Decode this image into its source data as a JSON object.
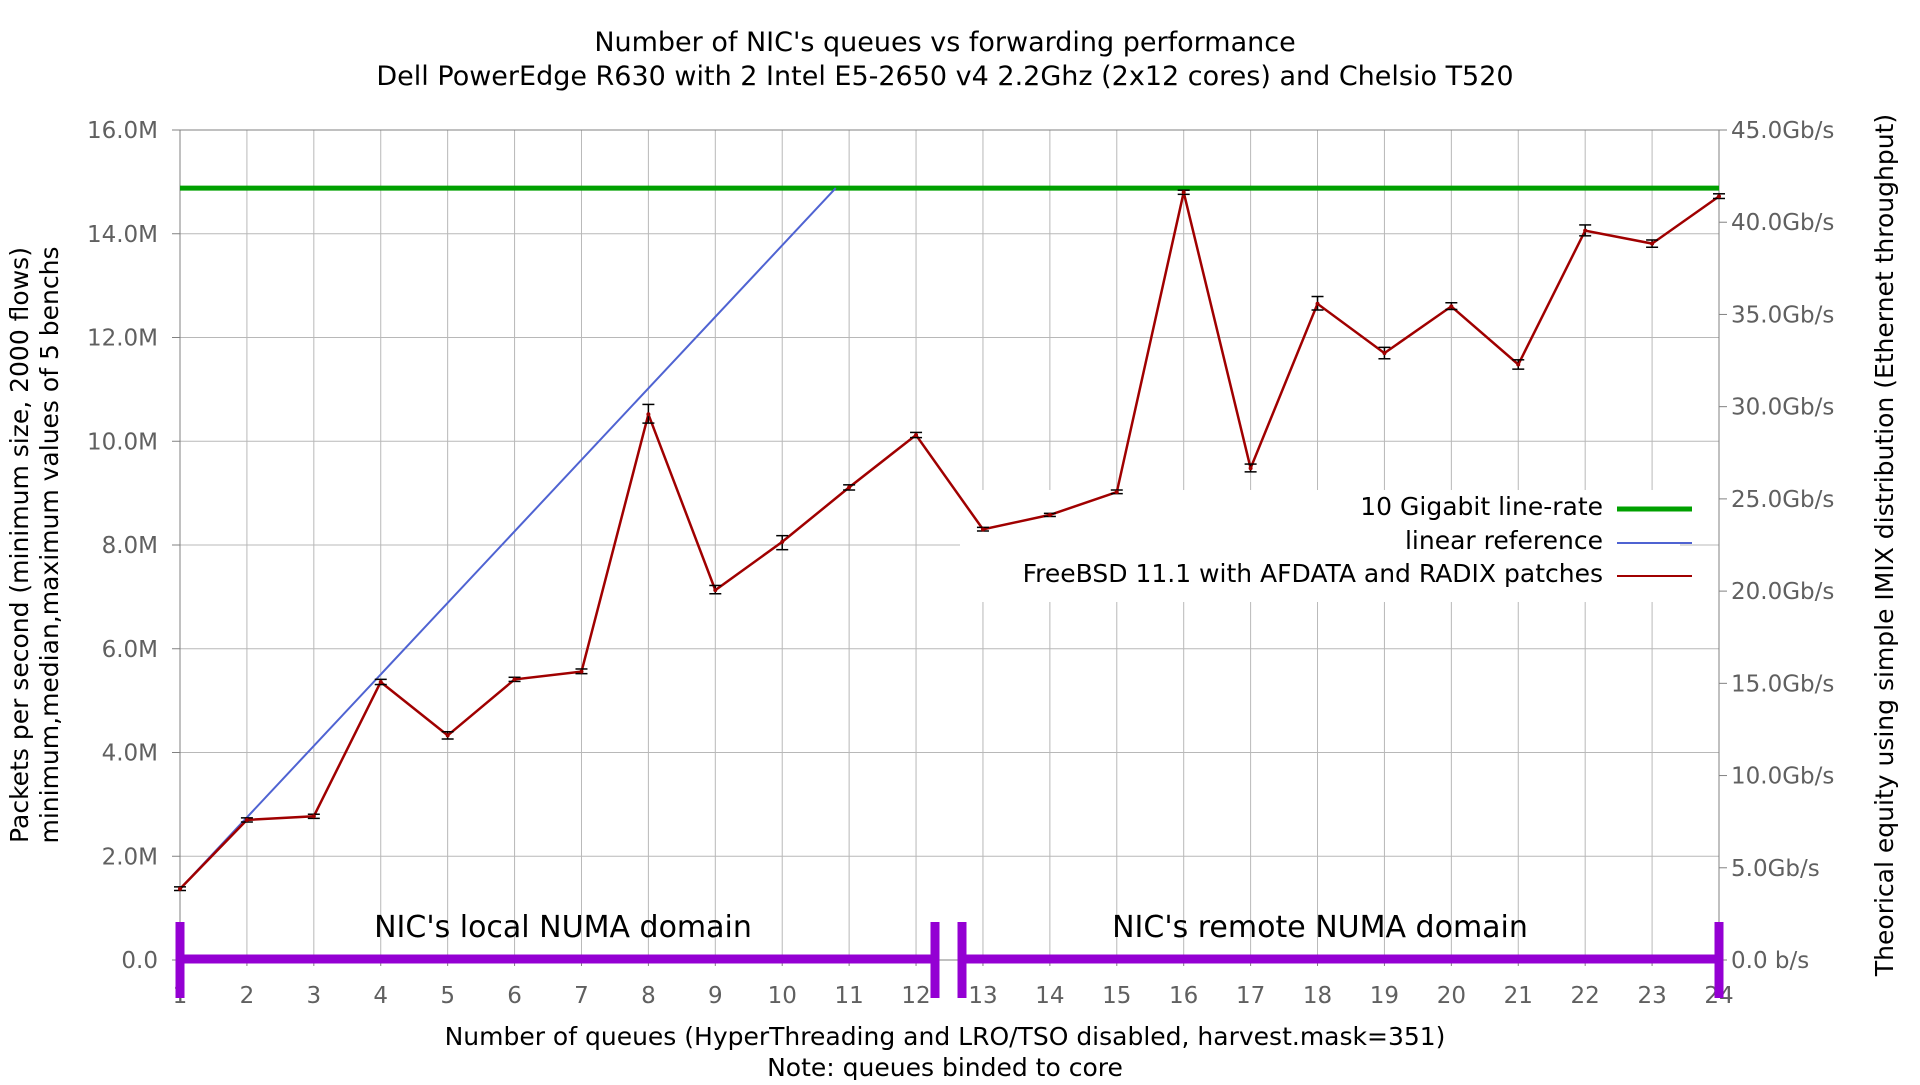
{
  "chart_data": {
    "type": "line",
    "title": "Number of NIC's queues vs forwarding performance",
    "subtitle": "Dell PowerEdge R630 with 2 Intel E5-2650 v4 2.2Ghz (2x12 cores) and Chelsio T520",
    "xlabel": "Number of queues (HyperThreading and LRO/TSO disabled, harvest.mask=351)",
    "xlabel2": "Note: queues binded to core",
    "ylabel": "Packets per second (minimum size, 2000 flows)",
    "ylabel2": "minimum,median,maximum values of 5 benchs",
    "y2label": "Theorical equity using simple IMIX distribution (Ethernet throughput)",
    "x": [
      1,
      2,
      3,
      4,
      5,
      6,
      7,
      8,
      9,
      10,
      11,
      12,
      13,
      14,
      15,
      16,
      17,
      18,
      19,
      20,
      21,
      22,
      23,
      24
    ],
    "xlim": [
      1,
      24
    ],
    "ylim": [
      0,
      16000000
    ],
    "y2lim": [
      0,
      45
    ],
    "y_ticks": [
      "0.0",
      "2.0M",
      "4.0M",
      "6.0M",
      "8.0M",
      "10.0M",
      "12.0M",
      "14.0M",
      "16.0M"
    ],
    "y2_ticks": [
      "0.0 b/s",
      "5.0Gb/s",
      "10.0Gb/s",
      "15.0Gb/s",
      "20.0Gb/s",
      "25.0Gb/s",
      "30.0Gb/s",
      "35.0Gb/s",
      "40.0Gb/s",
      "45.0Gb/s"
    ],
    "x_ticks": [
      "1",
      "2",
      "3",
      "4",
      "5",
      "6",
      "7",
      "8",
      "9",
      "10",
      "11",
      "12",
      "13",
      "14",
      "15",
      "16",
      "17",
      "18",
      "19",
      "20",
      "21",
      "22",
      "23",
      "24"
    ],
    "grid": true,
    "legend_position": "right",
    "series": [
      {
        "name": "10 Gigabit line-rate",
        "color": "#00a000",
        "kind": "constant",
        "value": 14880000
      },
      {
        "name": "linear reference",
        "color": "#4f63d2",
        "kind": "line",
        "x": [
          1,
          10.8
        ],
        "y": [
          1370000,
          14880000
        ]
      },
      {
        "name": "FreeBSD 11.1 with AFDATA and RADIX patches",
        "color": "#a00000",
        "kind": "errorline",
        "median": [
          1370000,
          2700000,
          2770000,
          5360000,
          4330000,
          5410000,
          5560000,
          10520000,
          7130000,
          8060000,
          9110000,
          10120000,
          8300000,
          8580000,
          9020000,
          14800000,
          9480000,
          12650000,
          11700000,
          12600000,
          11480000,
          14060000,
          13810000,
          14720000
        ],
        "min": [
          1340000,
          2660000,
          2730000,
          5310000,
          4260000,
          5370000,
          5520000,
          10350000,
          7060000,
          7910000,
          9060000,
          10070000,
          8270000,
          8550000,
          8990000,
          14760000,
          9410000,
          12530000,
          11590000,
          12540000,
          11390000,
          13960000,
          13740000,
          14680000
        ],
        "max": [
          1410000,
          2740000,
          2810000,
          5410000,
          4400000,
          5450000,
          5610000,
          10710000,
          7220000,
          8180000,
          9160000,
          10170000,
          8340000,
          8610000,
          9060000,
          14840000,
          9560000,
          12790000,
          11810000,
          12670000,
          11570000,
          14170000,
          13880000,
          14770000
        ]
      }
    ],
    "annotations": {
      "numa_local": "NIC's local NUMA domain",
      "numa_remote": "NIC's remote NUMA domain",
      "numa_color": "#9400d3"
    }
  }
}
